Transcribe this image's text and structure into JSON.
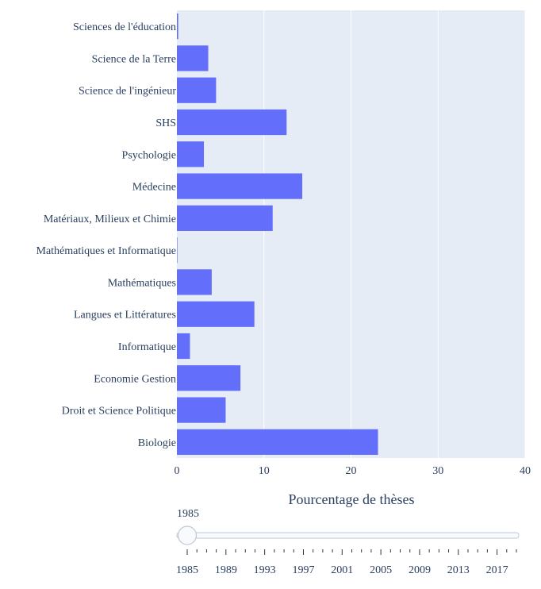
{
  "chart_data": {
    "type": "bar",
    "orientation": "horizontal",
    "categories": [
      "Sciences de l'éducation",
      "Science de la Terre",
      "Science de l'ingénieur",
      "SHS",
      "Psychologie",
      "Médecine",
      "Matériaux, Milieux et Chimie",
      "Mathématiques et Informatique",
      "Mathématiques",
      "Langues et Littératures",
      "Informatique",
      "Economie Gestion",
      "Droit et Science Politique",
      "Biologie"
    ],
    "values": [
      0.15,
      3.6,
      4.5,
      12.6,
      3.1,
      14.4,
      11.0,
      0.05,
      4.0,
      8.9,
      1.5,
      7.3,
      5.6,
      23.1
    ],
    "xlabel": "Pourcentage de thèses",
    "xlim": [
      0,
      40
    ],
    "xticks": [
      0,
      10,
      20,
      30,
      40
    ],
    "bar_color": "#636efa",
    "plot_bg": "#e5ecf6",
    "grid": true
  },
  "slider": {
    "current_label": "1985",
    "current_value": 1985,
    "min": 1985,
    "max": 2019,
    "tick_labels": [
      "1985",
      "1989",
      "1993",
      "1997",
      "2001",
      "2005",
      "2009",
      "2013",
      "2017"
    ]
  }
}
